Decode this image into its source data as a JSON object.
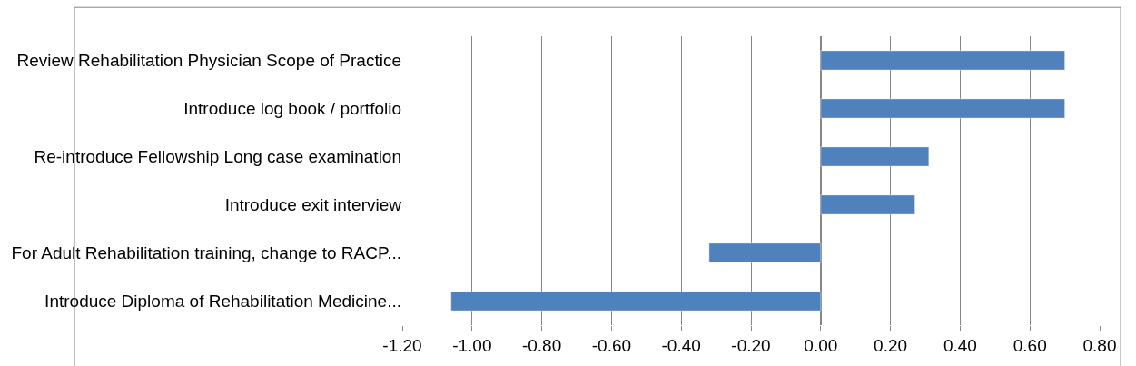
{
  "chart_data": {
    "type": "bar",
    "orientation": "horizontal",
    "categories": [
      "Review Rehabilitation Physician Scope of Practice",
      "Introduce log book / portfolio",
      "Re-introduce Fellowship Long case examination",
      "Introduce exit interview",
      "For Adult Rehabilitation training, change to RACP...",
      "Introduce Diploma of Rehabilitation Medicine..."
    ],
    "values": [
      0.7,
      0.7,
      0.31,
      0.27,
      -0.32,
      -1.06
    ],
    "color": "#4f81bd",
    "xlim": [
      -1.2,
      0.8
    ],
    "xticks": [
      {
        "value": -1.2,
        "label": "-1.20"
      },
      {
        "value": -1.0,
        "label": "-1.00"
      },
      {
        "value": -0.8,
        "label": "-0.80"
      },
      {
        "value": -0.6,
        "label": "-0.60"
      },
      {
        "value": -0.4,
        "label": "-0.40"
      },
      {
        "value": -0.2,
        "label": "-0.20"
      },
      {
        "value": 0,
        "label": "0.00"
      },
      {
        "value": 0.2,
        "label": "0.20"
      },
      {
        "value": 0.4,
        "label": "0.40"
      },
      {
        "value": 0.6,
        "label": "0.60"
      },
      {
        "value": 0.8,
        "label": "0.80"
      }
    ],
    "grid": "x"
  }
}
